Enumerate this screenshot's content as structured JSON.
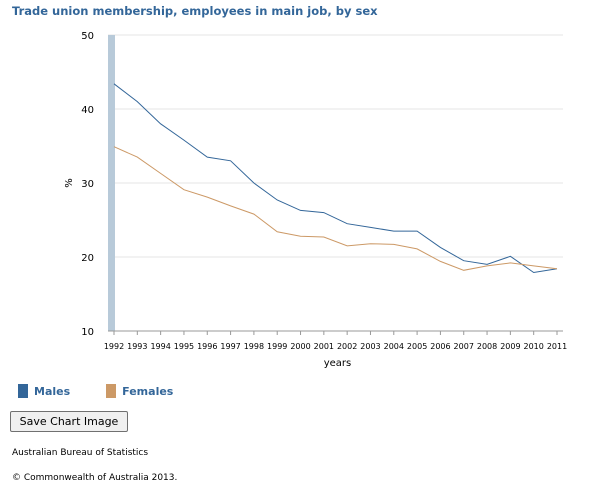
{
  "chart_data": {
    "type": "line",
    "title": "Trade union membership, employees in main job, by sex",
    "xlabel": "years",
    "ylabel": "%",
    "ylim": [
      10,
      50
    ],
    "yticks": [
      "10",
      "20",
      "30",
      "40",
      "50"
    ],
    "categories": [
      "1992",
      "1993",
      "1994",
      "1995",
      "1996",
      "1997",
      "1998",
      "1999",
      "2000",
      "2001",
      "2002",
      "2003",
      "2004",
      "2005",
      "2006",
      "2007",
      "2008",
      "2009",
      "2010",
      "2011"
    ],
    "series": [
      {
        "name": "Males",
        "color": "#336699",
        "values": [
          43.4,
          41.0,
          38.0,
          35.8,
          33.5,
          33.0,
          30.0,
          27.7,
          26.3,
          26.0,
          24.5,
          24.0,
          23.5,
          23.5,
          21.3,
          19.5,
          19.0,
          20.1,
          17.9,
          18.4
        ]
      },
      {
        "name": "Females",
        "color": "#CC9966",
        "values": [
          34.9,
          33.5,
          31.3,
          29.1,
          28.1,
          26.9,
          25.8,
          23.4,
          22.8,
          22.7,
          21.5,
          21.8,
          21.7,
          21.1,
          19.4,
          18.2,
          18.8,
          19.2,
          18.8,
          18.4
        ]
      }
    ],
    "grid": true,
    "legend": "bottom-left"
  },
  "legend": {
    "items": [
      {
        "label": "Males",
        "color": "#336699"
      },
      {
        "label": "Females",
        "color": "#CC9966"
      }
    ]
  },
  "toolbar": {
    "save_label": "Save Chart Image"
  },
  "footer": {
    "source": "Australian Bureau of Statistics",
    "copyright": "© Commonwealth of Australia 2013."
  }
}
